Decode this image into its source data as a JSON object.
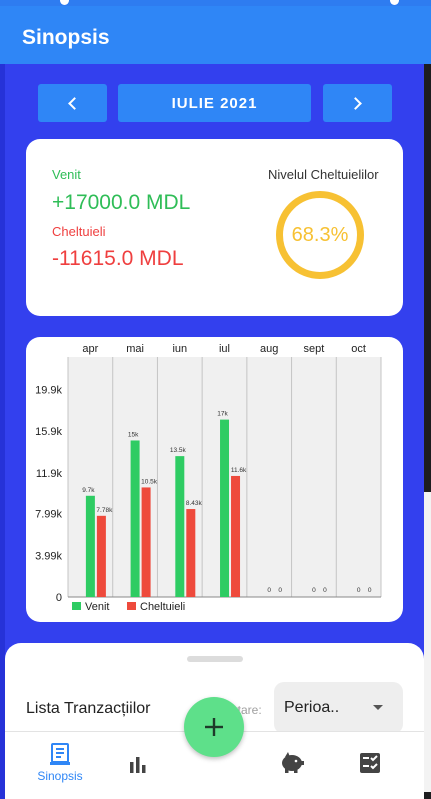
{
  "appbar": {
    "title": "Sinopsis"
  },
  "period": {
    "label": "IULIE 2021",
    "prev_icon": "chevron-left-icon",
    "next_icon": "chevron-right-icon"
  },
  "summary": {
    "income_label": "Venit",
    "income_value": "+17000.0 MDL",
    "expense_label": "Cheltuieli",
    "expense_value": "-11615.0 MDL",
    "level_label": "Nivelul Cheltuielilor",
    "level_value": "68.3%",
    "level_fraction": 0.683,
    "colors": {
      "income": "#2fbd57",
      "expense": "#ef3f3f",
      "gauge": "#f7c133"
    }
  },
  "chart_data": {
    "type": "bar",
    "categories": [
      "apr",
      "mai",
      "iun",
      "iul",
      "aug",
      "sept",
      "oct"
    ],
    "ylim": [
      0,
      23000
    ],
    "yticks": [
      0,
      3990,
      7990,
      11900,
      15900,
      19900
    ],
    "ytick_labels": [
      "0",
      "3.99k",
      "7.99k",
      "11.9k",
      "15.9k",
      "19.9k"
    ],
    "legend_position": "bottom-left",
    "grid": false,
    "series": [
      {
        "name": "Venit",
        "color": "#2ecc63",
        "values": [
          9700,
          15000,
          13500,
          17000,
          0,
          0,
          0
        ],
        "labels": [
          "9.7k",
          "15k",
          "13.5k",
          "17k",
          "0",
          "0",
          "0"
        ]
      },
      {
        "name": "Cheltuieli",
        "color": "#ee4a3c",
        "values": [
          7780,
          10500,
          8430,
          11600,
          0,
          0,
          0
        ],
        "labels": [
          "7.78k",
          "10.5k",
          "8.43k",
          "11.6k",
          "0",
          "0",
          "0"
        ]
      }
    ]
  },
  "transactions": {
    "title": "Lista Tranzacțiilor",
    "sort_label": "Sortare:",
    "sort_value": "Perioa.."
  },
  "bottom_nav": {
    "items": [
      {
        "label": "Sinopsis",
        "icon": "receipt-icon",
        "active": true
      },
      {
        "label": "",
        "icon": "bar-chart-icon"
      },
      {
        "label": "",
        "icon": "piggy-bank-icon"
      },
      {
        "label": "",
        "icon": "checklist-icon"
      }
    ],
    "fab_label": "+",
    "accent": "#2f86f6"
  }
}
